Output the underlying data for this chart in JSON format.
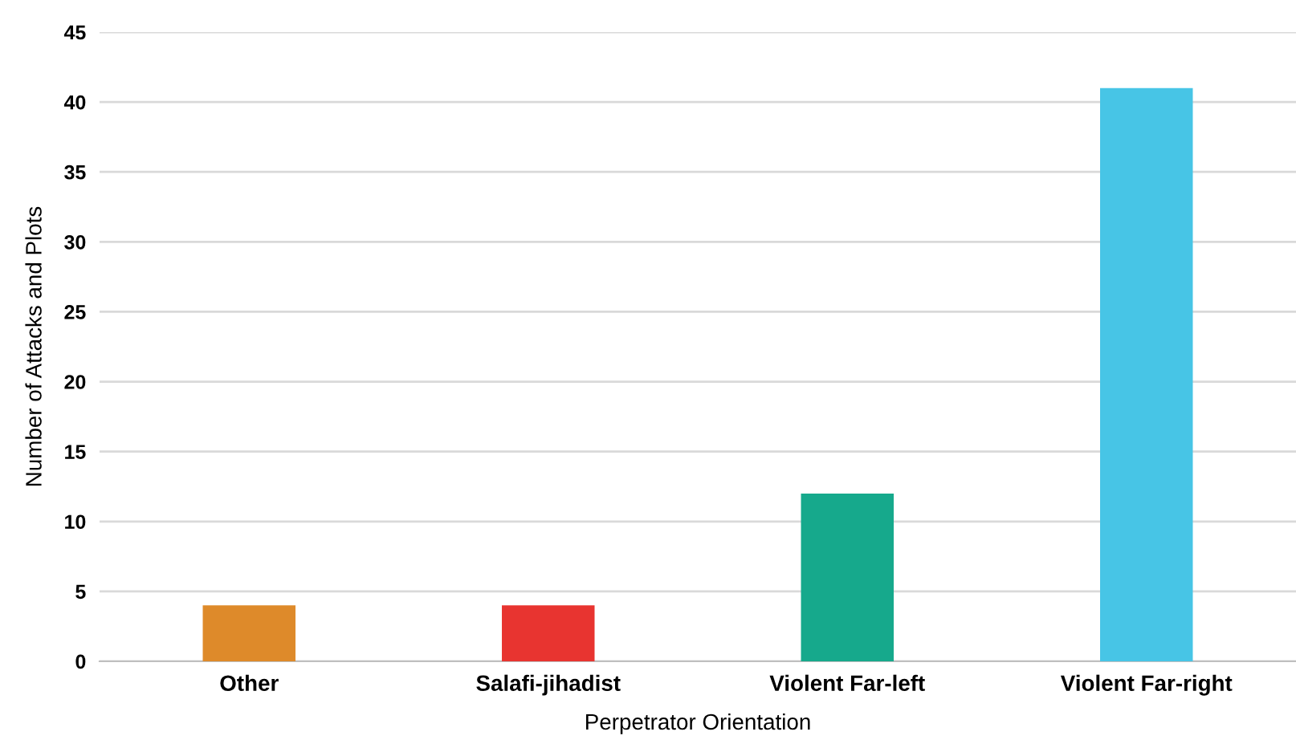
{
  "chart_data": {
    "type": "bar",
    "xlabel": "Perpetrator Orientation",
    "ylabel": "Number of Attacks and Plots",
    "categories": [
      "Other",
      "Salafi-jihadist",
      "Violent Far-left",
      "Violent Far-right"
    ],
    "values": [
      4,
      4,
      12,
      41
    ],
    "colors": [
      "#de8a2a",
      "#e83430",
      "#16a98c",
      "#47c5e6"
    ],
    "ylim": [
      0,
      45
    ],
    "yticks": [
      0,
      5,
      10,
      15,
      20,
      25,
      30,
      35,
      40,
      45
    ],
    "grid": "y",
    "legend": false
  }
}
